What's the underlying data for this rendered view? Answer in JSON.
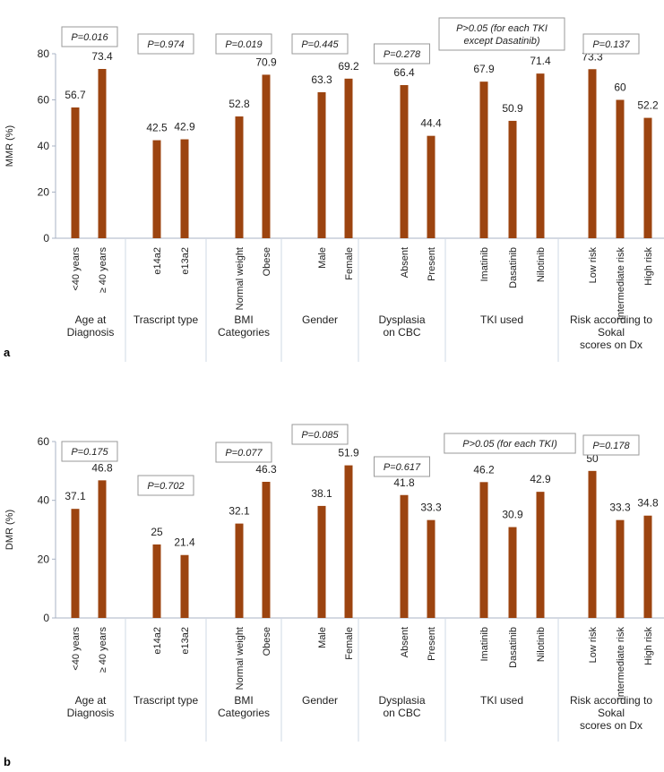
{
  "chart_data": [
    {
      "panel_label": "a",
      "type": "bar",
      "ylabel": "MMR (%)",
      "ylim": [
        0,
        80
      ],
      "yticks": [
        "0",
        "20",
        "40",
        "60",
        "80"
      ],
      "grid": false,
      "bar_color": "#9c4410",
      "groups": [
        {
          "label": [
            "Age at",
            "Diagnosis"
          ],
          "pvalue": [
            "P=0.016"
          ],
          "categories": [
            "<40 years",
            "≥ 40 years"
          ],
          "values": [
            56.7,
            73.4
          ],
          "value_labels": [
            "56.7",
            "73.4"
          ]
        },
        {
          "label": [
            "Trascript type"
          ],
          "pvalue": [
            "P=0.974"
          ],
          "categories": [
            "e14a2",
            "e13a2"
          ],
          "values": [
            42.5,
            42.9
          ],
          "value_labels": [
            "42.5",
            "42.9"
          ]
        },
        {
          "label": [
            "BMI",
            "Categories"
          ],
          "pvalue": [
            "P=0.019"
          ],
          "categories": [
            "Normal weight",
            "Obese"
          ],
          "values": [
            52.8,
            70.9
          ],
          "value_labels": [
            "52.8",
            "70.9"
          ]
        },
        {
          "label": [
            "Gender"
          ],
          "pvalue": [
            "P=0.445"
          ],
          "categories": [
            "Male",
            "Female"
          ],
          "values": [
            63.3,
            69.2
          ],
          "value_labels": [
            "63.3",
            "69.2"
          ]
        },
        {
          "label": [
            "Dysplasia",
            "on CBC"
          ],
          "pvalue": [
            "P=0.278"
          ],
          "categories": [
            "Absent",
            "Present"
          ],
          "values": [
            66.4,
            44.4
          ],
          "value_labels": [
            "66.4",
            "44.4"
          ]
        },
        {
          "label": [
            "TKI used"
          ],
          "pvalue": [
            "P>0.05 (for each TKI",
            "except Dasatinib)"
          ],
          "categories": [
            "Imatinib",
            "Dasatinib",
            "Nilotinib"
          ],
          "values": [
            67.9,
            50.9,
            71.4
          ],
          "value_labels": [
            "67.9",
            "50.9",
            "71.4"
          ]
        },
        {
          "label": [
            "Risk according to",
            "Sokal",
            "scores on Dx"
          ],
          "pvalue": [
            "P=0.137"
          ],
          "categories": [
            "Low risk",
            "Intermediate risk",
            "High risk"
          ],
          "values": [
            73.3,
            60,
            52.2
          ],
          "value_labels": [
            "73.3",
            "60",
            "52.2"
          ]
        }
      ]
    },
    {
      "panel_label": "b",
      "type": "bar",
      "ylabel": "DMR (%)",
      "ylim": [
        0,
        60
      ],
      "yticks": [
        "0",
        "20",
        "40",
        "60"
      ],
      "grid": false,
      "bar_color": "#9c4410",
      "groups": [
        {
          "label": [
            "Age at",
            "Diagnosis"
          ],
          "pvalue": [
            "P=0.175"
          ],
          "categories": [
            "<40 years",
            "≥ 40 years"
          ],
          "values": [
            37.1,
            46.8
          ],
          "value_labels": [
            "37.1",
            "46.8"
          ]
        },
        {
          "label": [
            "Trascript type"
          ],
          "pvalue": [
            "P=0.702"
          ],
          "categories": [
            "e14a2",
            "e13a2"
          ],
          "values": [
            25,
            21.4
          ],
          "value_labels": [
            "25",
            "21.4"
          ]
        },
        {
          "label": [
            "BMI",
            "Categories"
          ],
          "pvalue": [
            "P=0.077"
          ],
          "categories": [
            "Normal weight",
            "Obese"
          ],
          "values": [
            32.1,
            46.3
          ],
          "value_labels": [
            "32.1",
            "46.3"
          ]
        },
        {
          "label": [
            "Gender"
          ],
          "pvalue": [
            "P=0.085"
          ],
          "categories": [
            "Male",
            "Female"
          ],
          "values": [
            38.1,
            51.9
          ],
          "value_labels": [
            "38.1",
            "51.9"
          ]
        },
        {
          "label": [
            "Dysplasia",
            "on CBC"
          ],
          "pvalue": [
            "P=0.617"
          ],
          "categories": [
            "Absent",
            "Present"
          ],
          "values": [
            41.8,
            33.3
          ],
          "value_labels": [
            "41.8",
            "33.3"
          ]
        },
        {
          "label": [
            "TKI used"
          ],
          "pvalue": [
            "P>0.05 (for each TKI)"
          ],
          "categories": [
            "Imatinib",
            "Dasatinib",
            "Nilotinib"
          ],
          "values": [
            46.2,
            30.9,
            42.9
          ],
          "value_labels": [
            "46.2",
            "30.9",
            "42.9"
          ]
        },
        {
          "label": [
            "Risk according to",
            "Sokal",
            "scores on Dx"
          ],
          "pvalue": [
            "P=0.178"
          ],
          "categories": [
            "Low risk",
            "Intermediate risk",
            "High risk"
          ],
          "values": [
            50,
            33.3,
            34.8
          ],
          "value_labels": [
            "50",
            "33.3",
            "34.8"
          ]
        }
      ]
    }
  ]
}
